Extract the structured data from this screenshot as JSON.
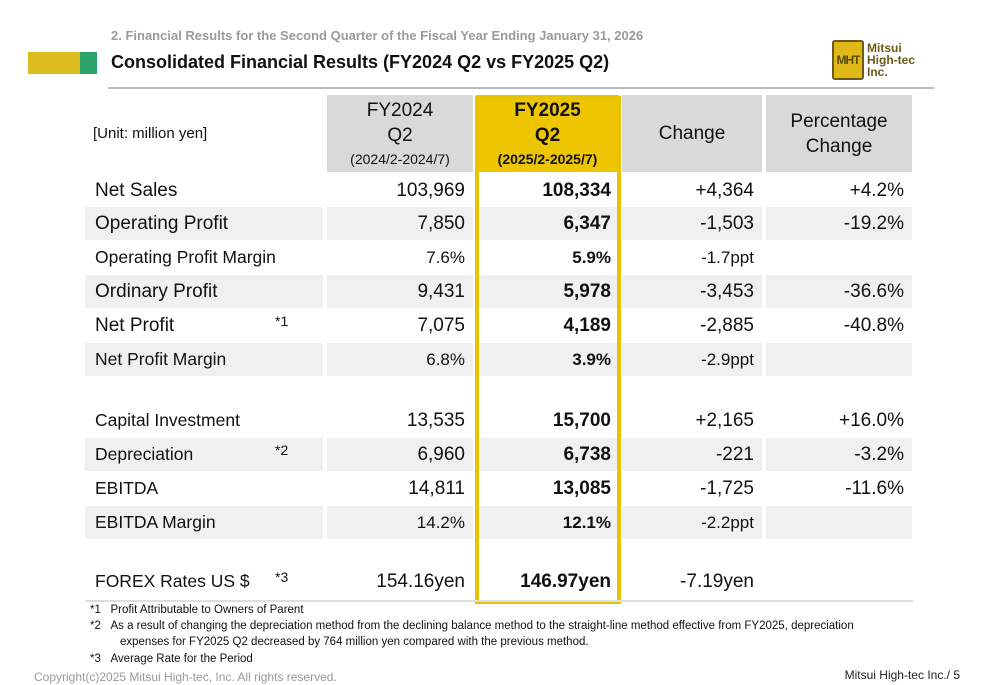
{
  "header": {
    "section": "2. Financial Results for the Second Quarter of the Fiscal Year Ending January 31, 2026",
    "title": "Consolidated Financial Results (FY2024 Q2 vs FY2025 Q2)",
    "logo_mark": "MHT",
    "logo_lines": [
      "Mitsui",
      "High-tec",
      "Inc."
    ]
  },
  "table": {
    "unit": "[Unit: million yen]",
    "columns": [
      {
        "l1": "FY2024",
        "l2": "Q2",
        "l3": "(2024/2-2024/7)"
      },
      {
        "l1": "FY2025",
        "l2": "Q2",
        "l3": "(2025/2-2025/7)"
      },
      {
        "l1": "Change"
      },
      {
        "l1": "Percentage",
        "l2": "Change"
      }
    ],
    "rows": [
      {
        "label": "Net Sales",
        "note": "",
        "v": [
          "103,969",
          "108,334",
          "+4,364",
          "+4.2%"
        ]
      },
      {
        "label": "Operating Profit",
        "note": "",
        "v": [
          "7,850",
          "6,347",
          "-1,503",
          "-19.2%"
        ]
      },
      {
        "label": "Operating Profit Margin",
        "note": "",
        "v": [
          "7.6%",
          "5.9%",
          "-1.7ppt",
          ""
        ]
      },
      {
        "label": "Ordinary Profit",
        "note": "",
        "v": [
          "9,431",
          "5,978",
          "-3,453",
          "-36.6%"
        ]
      },
      {
        "label": "Net Profit",
        "note": "*1",
        "v": [
          "7,075",
          "4,189",
          "-2,885",
          "-40.8%"
        ]
      },
      {
        "label": "Net Profit Margin",
        "note": "",
        "v": [
          "6.8%",
          "3.9%",
          "-2.9ppt",
          ""
        ]
      },
      {
        "label": "Capital Investment",
        "note": "",
        "v": [
          "13,535",
          "15,700",
          "+2,165",
          "+16.0%"
        ]
      },
      {
        "label": "Depreciation",
        "note": "*2",
        "v": [
          "6,960",
          "6,738",
          "-221",
          "-3.2%"
        ]
      },
      {
        "label": "EBITDA",
        "note": "",
        "v": [
          "14,811",
          "13,085",
          "-1,725",
          "-11.6%"
        ]
      },
      {
        "label": "EBITDA Margin",
        "note": "",
        "v": [
          "14.2%",
          "12.1%",
          "-2.2ppt",
          ""
        ]
      },
      {
        "label": "FOREX Rates US $",
        "note": "*3",
        "v": [
          "154.16yen",
          "146.97yen",
          "-7.19yen",
          ""
        ]
      }
    ]
  },
  "notes": [
    {
      "mark": "*1",
      "text": "Profit Attributable to Owners of Parent"
    },
    {
      "mark": "*2",
      "text": "As a result of changing the depreciation method from the declining balance method to the straight-line method effective from FY2025, depreciation",
      "text2": "expenses for FY2025 Q2 decreased by 764 million yen compared with the previous method."
    },
    {
      "mark": "*3",
      "text": "Average Rate for the Period"
    }
  ],
  "footer": {
    "copyright": "Copyright(c)2025 Mitsui High-tec, Inc. All rights reserved.",
    "page": "Mitsui High-tec Inc./ 5"
  },
  "colors": {
    "accent_yellow": "#e8c300",
    "accent_green": "#2aa36b"
  }
}
